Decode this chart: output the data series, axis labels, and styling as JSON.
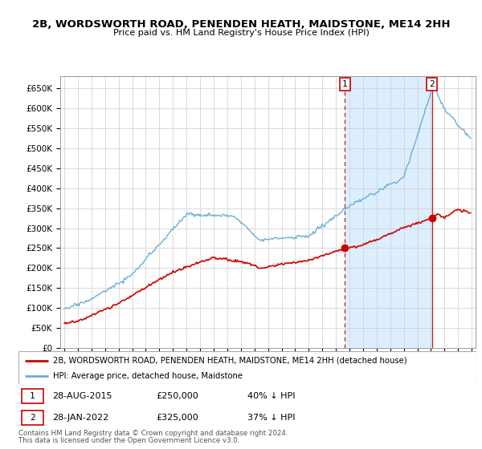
{
  "title": "2B, WORDSWORTH ROAD, PENENDEN HEATH, MAIDSTONE, ME14 2HH",
  "subtitle": "Price paid vs. HM Land Registry's House Price Index (HPI)",
  "ylabel_ticks": [
    "£0",
    "£50K",
    "£100K",
    "£150K",
    "£200K",
    "£250K",
    "£300K",
    "£350K",
    "£400K",
    "£450K",
    "£500K",
    "£550K",
    "£600K",
    "£650K"
  ],
  "ytick_values": [
    0,
    50000,
    100000,
    150000,
    200000,
    250000,
    300000,
    350000,
    400000,
    450000,
    500000,
    550000,
    600000,
    650000
  ],
  "ylim": [
    0,
    680000
  ],
  "sale1_yr": 2015.67,
  "sale1_price": 250000,
  "sale2_yr": 2022.08,
  "sale2_price": 325000,
  "red_line_color": "#cc0000",
  "blue_line_color": "#6aaed6",
  "shade_color": "#ddeeff",
  "legend_text1": "2B, WORDSWORTH ROAD, PENENDEN HEATH, MAIDSTONE, ME14 2HH (detached house)",
  "legend_text2": "HPI: Average price, detached house, Maidstone",
  "footnote1": "Contains HM Land Registry data © Crown copyright and database right 2024.",
  "footnote2": "This data is licensed under the Open Government Licence v3.0.",
  "note1_date": "28-AUG-2015",
  "note1_price": "£250,000",
  "note1_pct": "40% ↓ HPI",
  "note2_date": "28-JAN-2022",
  "note2_price": "£325,000",
  "note2_pct": "37% ↓ HPI",
  "grid_color": "#cccccc",
  "x_start_year": 1995,
  "x_end_year": 2025
}
